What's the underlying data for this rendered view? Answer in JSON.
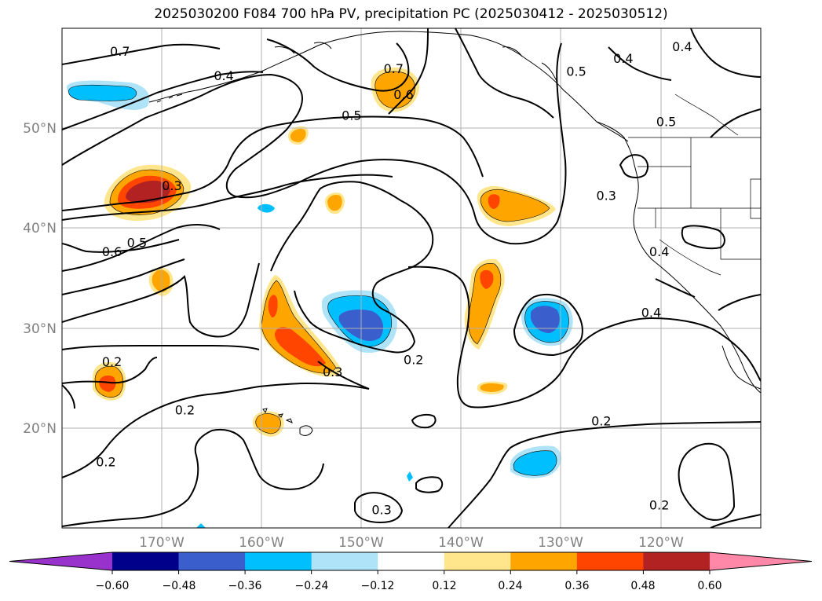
{
  "title": "2025030200 F084 700 hPa PV, precipitation PC (2025030412 - 2025030512)",
  "map": {
    "lat_labels": [
      "50°N",
      "40°N",
      "30°N",
      "20°N"
    ],
    "lon_labels": [
      "170°W",
      "160°W",
      "150°W",
      "140°W",
      "130°W",
      "120°W"
    ],
    "contour_labels": [
      {
        "text": "0.7",
        "lon": -174.2,
        "lat": 57.6
      },
      {
        "text": "0.4",
        "lon": -163.8,
        "lat": 55.2
      },
      {
        "text": "0.7",
        "lon": -146.8,
        "lat": 55.9
      },
      {
        "text": "0.6",
        "lon": -145.8,
        "lat": 53.3
      },
      {
        "text": "0.5",
        "lon": -151.0,
        "lat": 51.2
      },
      {
        "text": "0.3",
        "lon": -169.0,
        "lat": 44.2
      },
      {
        "text": "0.6",
        "lon": -175.0,
        "lat": 37.6
      },
      {
        "text": "0.5",
        "lon": -172.5,
        "lat": 38.5
      },
      {
        "text": "0.3",
        "lon": -152.9,
        "lat": 25.6
      },
      {
        "text": "0.2",
        "lon": -144.8,
        "lat": 26.8
      },
      {
        "text": "0.2",
        "lon": -175.0,
        "lat": 26.6
      },
      {
        "text": "0.2",
        "lon": -167.7,
        "lat": 21.8
      },
      {
        "text": "0.2",
        "lon": -175.6,
        "lat": 16.6
      },
      {
        "text": "0.3",
        "lon": -148.0,
        "lat": 11.8
      },
      {
        "text": "0.2",
        "lon": -126.0,
        "lat": 20.7
      },
      {
        "text": "0.2",
        "lon": -120.2,
        "lat": 12.3
      },
      {
        "text": "0.3",
        "lon": -125.5,
        "lat": 43.2
      },
      {
        "text": "0.5",
        "lon": -128.5,
        "lat": 55.6
      },
      {
        "text": "0.4",
        "lon": -123.8,
        "lat": 56.9
      },
      {
        "text": "0.5",
        "lon": -119.5,
        "lat": 50.6
      },
      {
        "text": "0.4",
        "lon": -117.9,
        "lat": 58.1
      },
      {
        "text": "0.4",
        "lon": -120.2,
        "lat": 37.6
      },
      {
        "text": "0.4",
        "lon": -121.0,
        "lat": 31.5
      }
    ]
  },
  "colorbar": {
    "ticks": [
      "−0.60",
      "−0.48",
      "−0.36",
      "−0.24",
      "−0.12",
      "0.12",
      "0.24",
      "0.36",
      "0.48",
      "0.60"
    ],
    "colors": [
      "#9932cc",
      "#00008b",
      "#3a5fcd",
      "#00bfff",
      "#afe3f8",
      "#ffffff",
      "#ffe68c",
      "#ffa500",
      "#ff4500",
      "#b22222",
      "#ff88a8"
    ]
  }
}
